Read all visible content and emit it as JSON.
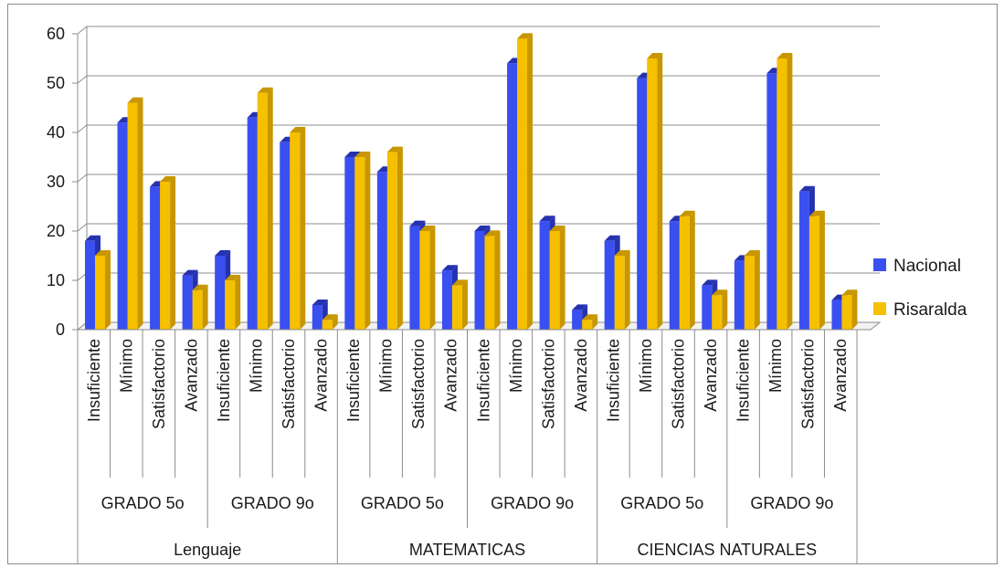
{
  "chart_data": {
    "type": "bar",
    "title": "",
    "xlabel": "",
    "ylabel": "",
    "ylim": [
      0,
      60
    ],
    "yticks": [
      0,
      10,
      20,
      30,
      40,
      50,
      60
    ],
    "grid": true,
    "legend_position": "right",
    "three_d": true,
    "subjects": [
      "Lenguaje",
      "MATEMATICAS",
      "CIENCIAS NATURALES"
    ],
    "grades": [
      "GRADO 5o",
      "GRADO 9o"
    ],
    "levels": [
      "Insuficiente",
      "Mínimo",
      "Satisfactorio",
      "Avanzado"
    ],
    "categories": [
      "Lenguaje / GRADO 5o / Insuficiente",
      "Lenguaje / GRADO 5o / Mínimo",
      "Lenguaje / GRADO 5o / Satisfactorio",
      "Lenguaje / GRADO 5o / Avanzado",
      "Lenguaje / GRADO 9o / Insuficiente",
      "Lenguaje / GRADO 9o / Mínimo",
      "Lenguaje / GRADO 9o / Satisfactorio",
      "Lenguaje / GRADO 9o / Avanzado",
      "MATEMATICAS / GRADO 5o / Insuficiente",
      "MATEMATICAS / GRADO 5o / Mínimo",
      "MATEMATICAS / GRADO 5o / Satisfactorio",
      "MATEMATICAS / GRADO 5o / Avanzado",
      "MATEMATICAS / GRADO 9o / Insuficiente",
      "MATEMATICAS / GRADO 9o / Mínimo",
      "MATEMATICAS / GRADO 9o / Satisfactorio",
      "MATEMATICAS / GRADO 9o / Avanzado",
      "CIENCIAS NATURALES / GRADO 5o / Insuficiente",
      "CIENCIAS NATURALES / GRADO 5o / Mínimo",
      "CIENCIAS NATURALES / GRADO 5o / Satisfactorio",
      "CIENCIAS NATURALES / GRADO 5o / Avanzado",
      "CIENCIAS NATURALES / GRADO 9o / Insuficiente",
      "CIENCIAS NATURALES / GRADO 9o / Mínimo",
      "CIENCIAS NATURALES / GRADO 9o / Satisfactorio",
      "CIENCIAS NATURALES / GRADO 9o / Avanzado"
    ],
    "series": [
      {
        "name": "Nacional",
        "color": "#3a4ff0",
        "shade": "#2532b0",
        "values": [
          18,
          42,
          29,
          11,
          15,
          43,
          38,
          5,
          35,
          32,
          21,
          12,
          20,
          54,
          22,
          4,
          18,
          51,
          22,
          9,
          14,
          52,
          28,
          6
        ]
      },
      {
        "name": "Risaralda",
        "color": "#f5c000",
        "shade": "#c79600",
        "values": [
          15,
          46,
          30,
          8,
          10,
          48,
          40,
          2,
          35,
          36,
          20,
          9,
          19,
          59,
          20,
          2,
          15,
          55,
          23,
          7,
          15,
          55,
          23,
          7
        ]
      }
    ]
  }
}
